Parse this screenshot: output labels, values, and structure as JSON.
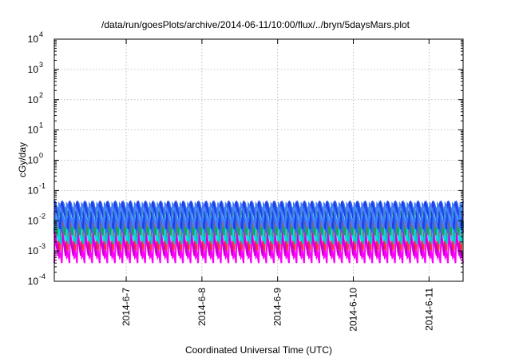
{
  "chart_data": {
    "type": "line",
    "title": "/data/run/goesPlots/archive/2014-06-11/10:00/flux/../bryn/5daysMars.plot",
    "xlabel": "Coordinated Universal Time (UTC)",
    "ylabel": "cGy/day",
    "y_scale": "log",
    "ylim_exponents": [
      -4,
      4
    ],
    "y_tick_base": "10",
    "y_tick_exponents": [
      "-4",
      "-3",
      "-2",
      "-1",
      "0",
      "1",
      "2",
      "3",
      "4"
    ],
    "x_tick_labels": [
      "2014-6-7",
      "2014-6-8",
      "2014-6-9",
      "2014-6-10",
      "2014-6-11"
    ],
    "xlim_days": [
      6.05,
      11.45
    ],
    "grid": true,
    "oscillation": {
      "period_days": 0.1,
      "note_series": "superimposed sawtooth series, rising sharply then decaying"
    },
    "series": [
      {
        "color": "#ff00ff",
        "peak": 0.012,
        "trough": 0.0004,
        "phase": 0.0
      },
      {
        "color": "#ff00ff",
        "peak": 0.01,
        "trough": 0.0005,
        "phase": 0.03
      },
      {
        "color": "#cc00cc",
        "peak": 0.015,
        "trough": 0.0007,
        "phase": 0.05
      },
      {
        "color": "#ff3030",
        "peak": 0.02,
        "trough": 0.001,
        "phase": 0.02
      },
      {
        "color": "#00cccc",
        "peak": 0.02,
        "trough": 0.0015,
        "phase": 0.01
      },
      {
        "color": "#00e0e0",
        "peak": 0.015,
        "trough": 0.002,
        "phase": 0.04
      },
      {
        "color": "#20a060",
        "peak": 0.03,
        "trough": 0.003,
        "phase": 0.06
      },
      {
        "color": "#3366ff",
        "peak": 0.045,
        "trough": 0.004,
        "phase": 0.0
      },
      {
        "color": "#2040e0",
        "peak": 0.05,
        "trough": 0.005,
        "phase": 0.02
      },
      {
        "color": "#4080ff",
        "peak": 0.04,
        "trough": 0.006,
        "phase": 0.05
      }
    ]
  }
}
